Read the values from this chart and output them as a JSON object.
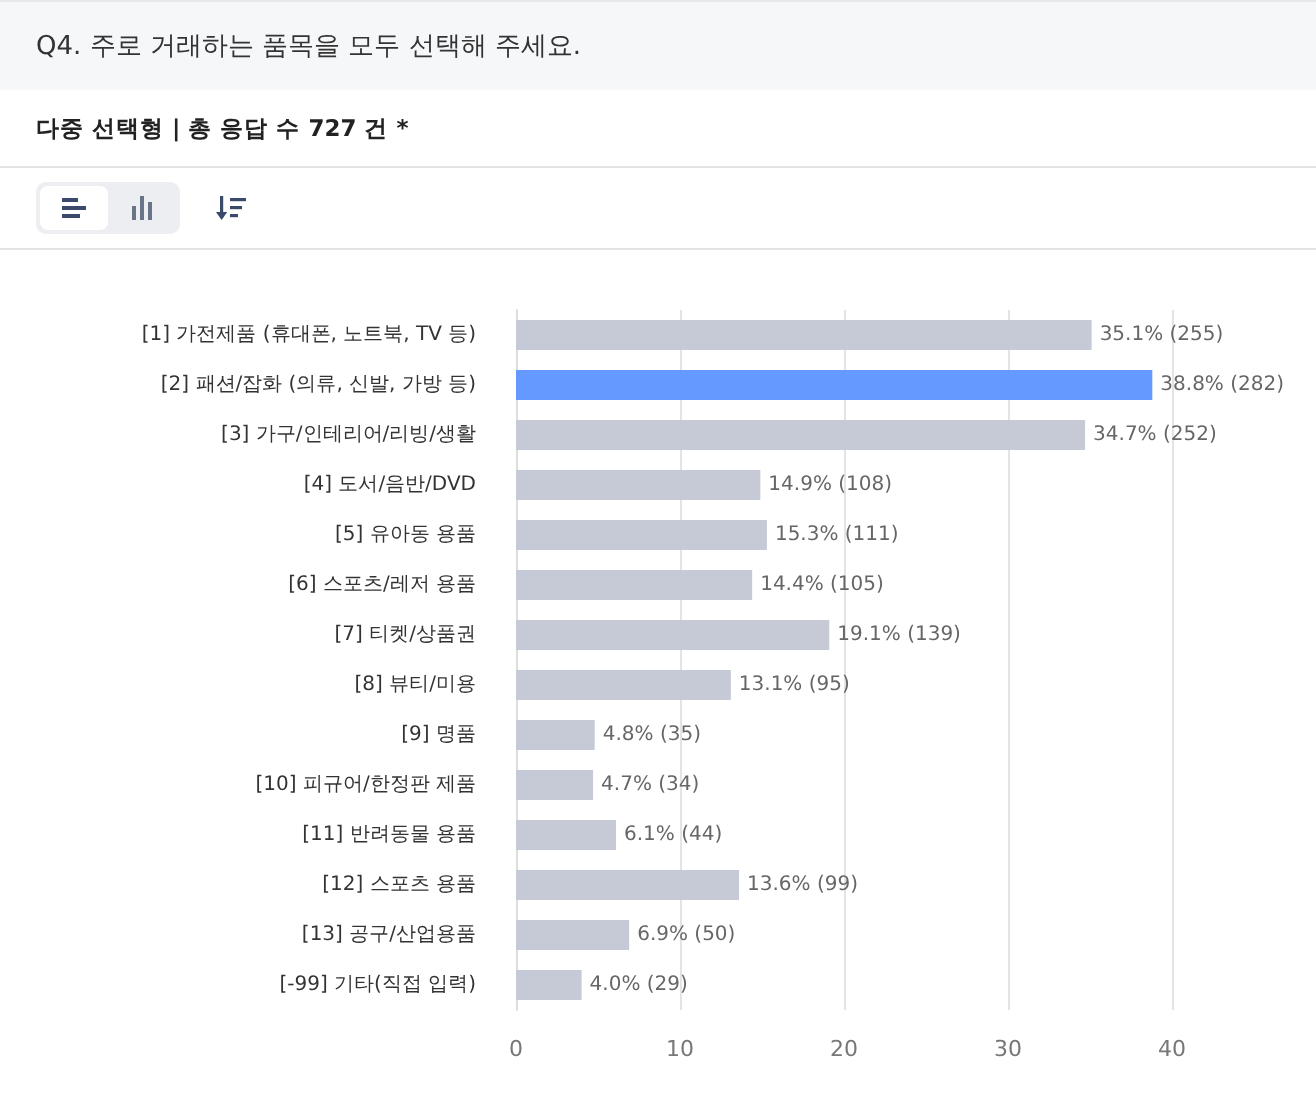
{
  "chart_data": {
    "type": "bar",
    "orientation": "horizontal",
    "title": "Q4. 주로 거래하는 품목을 모두 선택해 주세요.",
    "subtitle": "다중 선택형 | 총 응답 수 727 건 *",
    "categories": [
      "[1] 가전제품 (휴대폰, 노트북, TV 등)",
      "[2] 패션/잡화 (의류, 신발, 가방 등)",
      "[3] 가구/인테리어/리빙/생활",
      "[4] 도서/음반/DVD",
      "[5] 유아동 용품",
      "[6] 스포츠/레저 용품",
      "[7] 티켓/상품권",
      "[8] 뷰티/미용",
      "[9] 명품",
      "[10] 피규어/한정판 제품",
      "[11] 반려동물 용품",
      "[12] 스포츠 용품",
      "[13] 공구/산업용품",
      "[-99] 기타(직접 입력)"
    ],
    "values": [
      35.1,
      38.8,
      34.7,
      14.9,
      15.3,
      14.4,
      19.1,
      13.1,
      4.8,
      4.7,
      6.1,
      13.6,
      6.9,
      4.0
    ],
    "value_labels": [
      "35.1% (255)",
      "38.8% (282)",
      "34.7% (252)",
      "14.9% (108)",
      "15.3% (111)",
      "14.4% (105)",
      "19.1% (139)",
      "13.1% (95)",
      "4.8% (35)",
      "4.7% (34)",
      "6.1% (44)",
      "13.6% (99)",
      "6.9% (50)",
      "4.0% (29)"
    ],
    "colors": [
      "#c5cad6",
      "#6699ff",
      "#c5cad6",
      "#c5cad6",
      "#c5cad6",
      "#c5cad6",
      "#c5cad6",
      "#c5cad6",
      "#c5cad6",
      "#c5cad6",
      "#c5cad6",
      "#c5cad6",
      "#c5cad6",
      "#c5cad6"
    ],
    "xlim": [
      0,
      40
    ],
    "xticks": [
      0,
      10,
      20,
      30,
      40
    ],
    "grid": "x"
  }
}
